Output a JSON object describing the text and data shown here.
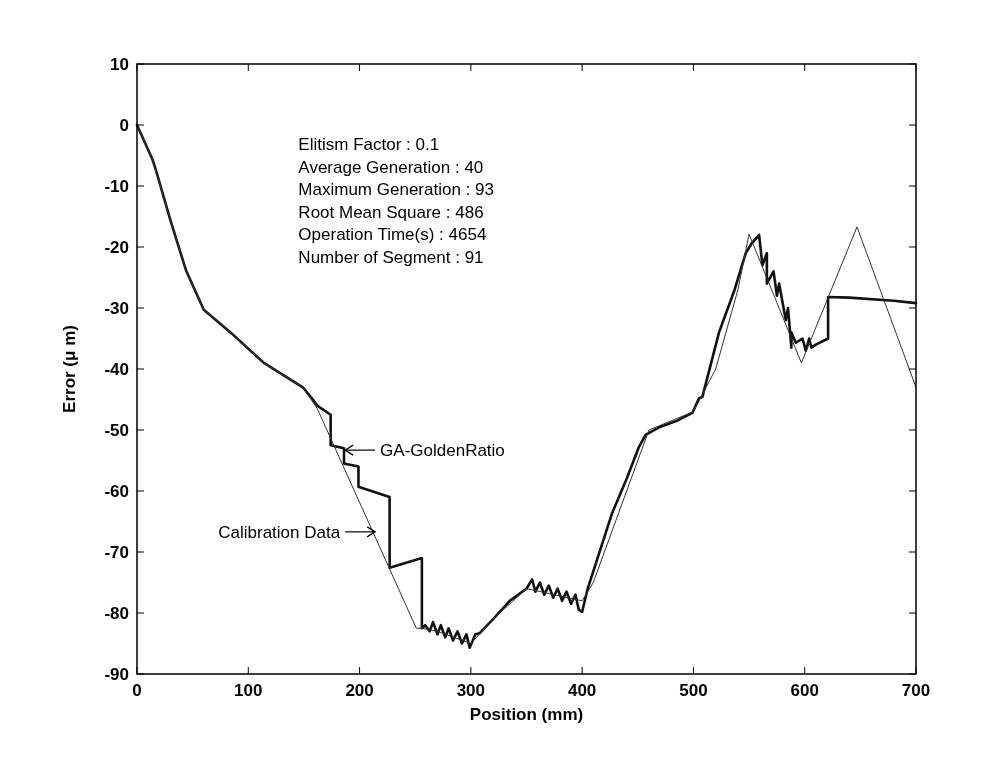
{
  "chart_data": {
    "type": "line",
    "xlabel": "Position (mm)",
    "ylabel": "Error (μ m)",
    "xlim": [
      0,
      700
    ],
    "xticks": [
      0,
      100,
      200,
      300,
      400,
      500,
      600,
      700
    ],
    "ylim": [
      -90,
      10
    ],
    "yticks": [
      10,
      0,
      -10,
      -20,
      -30,
      -40,
      -50,
      -60,
      -70,
      -80,
      -90
    ],
    "grid": false,
    "marker": "none",
    "line_style": "solid",
    "series": [
      {
        "color": "#111111",
        "x": [
          0,
          14,
          17,
          30,
          44,
          60,
          84,
          114,
          149,
          158,
          162,
          174,
          174,
          186,
          186,
          199,
          199,
          227,
          227,
          256,
          256,
          259,
          263,
          266,
          270,
          273,
          277,
          280,
          284,
          288,
          292,
          296,
          299,
          304,
          308,
          320,
          335,
          350,
          355,
          358,
          362,
          366,
          370,
          374,
          378,
          382,
          386,
          390,
          394,
          397,
          400,
          405,
          427,
          440,
          451,
          457,
          470,
          485,
          499,
          505,
          508,
          523,
          537,
          547,
          552,
          559,
          562,
          566,
          566,
          572,
          575,
          577,
          583,
          585,
          588,
          588,
          592,
          598,
          601,
          604,
          606,
          610,
          621,
          621,
          640,
          680,
          700
        ],
        "values": [
          0,
          -5.7,
          -7.4,
          -15.6,
          -23.8,
          -30.3,
          -34,
          -39,
          -43,
          -45,
          -46,
          -47.5,
          -52.5,
          -53,
          -55.5,
          -56,
          -59.3,
          -61,
          -72.6,
          -71,
          -82.5,
          -82,
          -83,
          -81.5,
          -83.5,
          -82,
          -84,
          -82.5,
          -84.5,
          -83,
          -85,
          -83.5,
          -85.7,
          -83.5,
          -83.3,
          -81,
          -78,
          -76,
          -74.5,
          -76.5,
          -75,
          -77,
          -75.5,
          -77.5,
          -76,
          -78,
          -76.5,
          -78.5,
          -77,
          -79.5,
          -79.8,
          -76,
          -63.6,
          -58,
          -52.8,
          -50.8,
          -49.5,
          -48.5,
          -47.2,
          -44.8,
          -44.6,
          -34,
          -27,
          -21,
          -19.5,
          -18,
          -23,
          -21,
          -26,
          -24,
          -28,
          -26,
          -32,
          -30,
          -36.5,
          -34,
          -35.7,
          -35,
          -37,
          -35,
          -36.5,
          -36,
          -35,
          -28.2,
          -28.3,
          -28.8,
          -29.2
        ]
      },
      {
        "color": "#333333",
        "x": [
          0,
          14,
          30,
          44,
          60,
          84,
          114,
          149,
          162,
          251,
          256,
          270,
          285,
          300,
          320,
          350,
          375,
          400,
          410,
          440,
          460,
          500,
          520,
          540,
          550,
          597,
          647,
          700
        ],
        "values": [
          0,
          -5.7,
          -15.6,
          -23.8,
          -30.3,
          -34,
          -39,
          -43,
          -46.5,
          -82.5,
          -82.5,
          -83,
          -84,
          -85,
          -81,
          -76,
          -77,
          -78,
          -75,
          -60,
          -50,
          -47,
          -40,
          -27,
          -17.9,
          -39,
          -16.7,
          -43
        ]
      }
    ],
    "annotations": [
      "Elitism Factor : 0.1",
      "Average Generation : 40",
      "Maximum Generation : 93",
      "Root Mean Square : 486",
      "Operation Time(s) : 4654",
      "Number of Segment : 91",
      {
        "text": "GA-GoldenRatio",
        "x": 187,
        "y": -53.3
      },
      {
        "text": "Calibration Data",
        "x": 214,
        "y": -66.7
      }
    ]
  }
}
